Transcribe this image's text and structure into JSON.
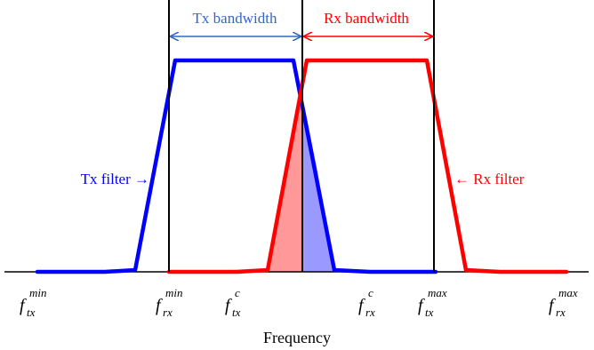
{
  "annotations": {
    "tx_bandwidth": "Tx bandwidth",
    "rx_bandwidth": "Rx bandwidth",
    "tx_filter": "Tx filter →",
    "rx_filter": "← Rx filter"
  },
  "axis": {
    "xlabel": "Frequency"
  },
  "ticks": [
    {
      "key": "tx_min",
      "base": "f",
      "sub": "tx",
      "sup": "min"
    },
    {
      "key": "rx_min",
      "base": "f",
      "sub": "rx",
      "sup": "min"
    },
    {
      "key": "tx_c",
      "base": "f",
      "sub": "tx",
      "sup": "c"
    },
    {
      "key": "rx_c",
      "base": "f",
      "sub": "rx",
      "sup": "c"
    },
    {
      "key": "tx_max",
      "base": "f",
      "sub": "tx",
      "sup": "max"
    },
    {
      "key": "rx_max",
      "base": "f",
      "sub": "rx",
      "sup": "max"
    }
  ],
  "colors": {
    "tx": "#0000ff",
    "rx": "#ff0000",
    "tx_overlap_fill": "#9999ff",
    "rx_overlap_fill": "#ff9999",
    "tx_arrow": "#3366cc",
    "axis": "#000000"
  }
}
